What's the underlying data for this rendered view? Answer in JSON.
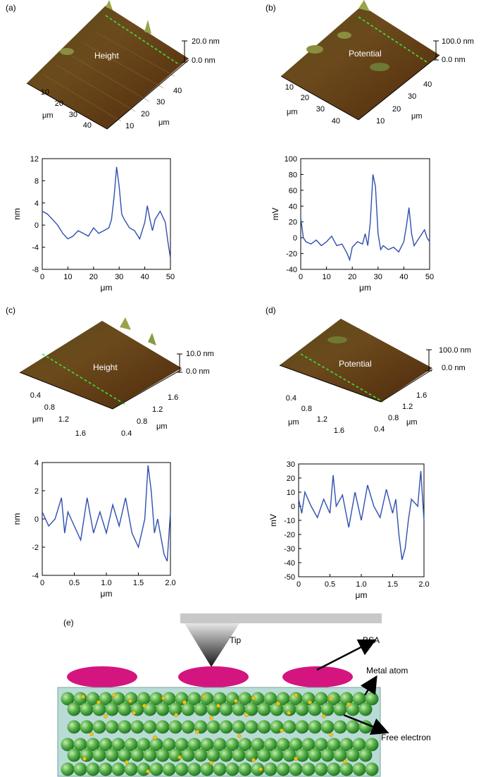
{
  "panels": {
    "a": {
      "label": "(a)",
      "surface": {
        "overlay": "Height",
        "scale_top": "20.0 nm",
        "scale_bottom": "0.0 nm",
        "left_ticks": [
          "10",
          "20",
          "30",
          "40"
        ],
        "right_ticks": [
          "10",
          "20",
          "30",
          "40"
        ],
        "unit_left": "μm",
        "unit_right": "μm"
      }
    },
    "b": {
      "label": "(b)",
      "surface": {
        "overlay": "Potential",
        "scale_top": "100.0 nm",
        "scale_bottom": "0.0 nm",
        "left_ticks": [
          "10",
          "20",
          "30",
          "40"
        ],
        "right_ticks": [
          "10",
          "20",
          "30",
          "40"
        ],
        "unit_left": "μm",
        "unit_right": "μm"
      }
    },
    "c": {
      "label": "(c)",
      "surface": {
        "overlay": "Height",
        "scale_top": "10.0 nm",
        "scale_bottom": "0.0 nm",
        "left_ticks": [
          "0.4",
          "0.8",
          "1.2",
          "1.6"
        ],
        "right_ticks": [
          "0.4",
          "0.8",
          "1.2",
          "1.6"
        ],
        "unit_left": "μm",
        "unit_right": "μm"
      }
    },
    "d": {
      "label": "(d)",
      "surface": {
        "overlay": "Potential",
        "scale_top": "100.0 nm",
        "scale_bottom": "0.0 nm",
        "left_ticks": [
          "0.4",
          "0.8",
          "1.2",
          "1.6"
        ],
        "right_ticks": [
          "0.4",
          "0.8",
          "1.2",
          "1.6"
        ],
        "unit_left": "μm",
        "unit_right": "μm"
      }
    },
    "e": {
      "label": "(e)",
      "tip": "Tip",
      "bsa": "BSA",
      "metal_atom": "Metal atom",
      "free_electron": "Free electron"
    }
  },
  "chart_data": [
    {
      "type": "line",
      "panel": "a",
      "xlabel": "μm",
      "ylabel": "nm",
      "xlim": [
        0,
        50
      ],
      "ylim": [
        -8,
        12
      ],
      "xticks": [
        0,
        10,
        20,
        30,
        40,
        50
      ],
      "yticks": [
        -8,
        -4,
        0,
        4,
        8,
        12
      ],
      "series": [
        {
          "x": [
            0,
            2,
            4,
            6,
            8,
            10,
            12,
            14,
            16,
            18,
            20,
            22,
            24,
            26,
            27,
            28,
            29,
            30,
            31,
            32,
            34,
            36,
            38,
            40,
            41,
            42,
            43,
            44,
            46,
            48,
            49,
            50
          ],
          "y": [
            2.5,
            2,
            1,
            0,
            -1.5,
            -2.5,
            -2,
            -1,
            -1.5,
            -2,
            -0.5,
            -1.5,
            -1,
            -0.5,
            1,
            5,
            10.5,
            7,
            2,
            1,
            -0.5,
            -1,
            -2.5,
            0.5,
            3.5,
            1,
            -1,
            1,
            2.5,
            0.5,
            -3,
            -6
          ]
        }
      ]
    },
    {
      "type": "line",
      "panel": "b",
      "xlabel": "μm",
      "ylabel": "mV",
      "xlim": [
        0,
        50
      ],
      "ylim": [
        -40,
        100
      ],
      "xticks": [
        0,
        10,
        20,
        30,
        40,
        50
      ],
      "yticks": [
        -40,
        -20,
        0,
        20,
        40,
        60,
        80,
        100
      ],
      "series": [
        {
          "x": [
            0,
            1,
            2,
            4,
            6,
            8,
            10,
            12,
            14,
            16,
            18,
            19,
            20,
            22,
            24,
            25,
            26,
            27,
            28,
            29,
            30,
            31,
            32,
            34,
            36,
            38,
            40,
            41,
            42,
            43,
            44,
            46,
            48,
            49,
            50
          ],
          "y": [
            25,
            0,
            -5,
            -8,
            -3,
            -10,
            -5,
            2,
            -10,
            -8,
            -20,
            -28,
            -12,
            -5,
            -8,
            5,
            -10,
            20,
            80,
            65,
            5,
            -15,
            -10,
            -15,
            -12,
            -18,
            -5,
            15,
            38,
            5,
            -10,
            0,
            10,
            0,
            -5
          ]
        }
      ]
    },
    {
      "type": "line",
      "panel": "c",
      "xlabel": "μm",
      "ylabel": "nm",
      "xlim": [
        0,
        2.0
      ],
      "ylim": [
        -4,
        4
      ],
      "xticks": [
        0,
        0.5,
        1.0,
        1.5,
        2.0
      ],
      "yticks": [
        -4,
        -2,
        0,
        2,
        4
      ],
      "series": [
        {
          "x": [
            0,
            0.1,
            0.2,
            0.3,
            0.35,
            0.4,
            0.5,
            0.6,
            0.7,
            0.8,
            0.9,
            1.0,
            1.1,
            1.2,
            1.3,
            1.4,
            1.5,
            1.55,
            1.6,
            1.65,
            1.7,
            1.75,
            1.8,
            1.9,
            1.95,
            2.0
          ],
          "y": [
            0.5,
            -0.5,
            0,
            1.5,
            -1,
            0.5,
            -0.5,
            -1.5,
            1.5,
            -1,
            0.5,
            -1,
            1,
            -0.5,
            1.5,
            -1,
            -2,
            -1,
            0,
            3.8,
            2,
            -1,
            0,
            -2.5,
            -3,
            0.5
          ]
        }
      ]
    },
    {
      "type": "line",
      "panel": "d",
      "xlabel": "μm",
      "ylabel": "mV",
      "xlim": [
        0,
        2.0
      ],
      "ylim": [
        -50,
        30
      ],
      "xticks": [
        0,
        0.5,
        1.0,
        1.5,
        2.0
      ],
      "yticks": [
        -50,
        -40,
        -30,
        -20,
        -10,
        0,
        10,
        20,
        30
      ],
      "series": [
        {
          "x": [
            0,
            0.05,
            0.1,
            0.2,
            0.3,
            0.4,
            0.5,
            0.55,
            0.6,
            0.7,
            0.8,
            0.9,
            1.0,
            1.1,
            1.2,
            1.3,
            1.4,
            1.5,
            1.55,
            1.6,
            1.65,
            1.7,
            1.75,
            1.8,
            1.9,
            1.95,
            2.0
          ],
          "y": [
            5,
            -5,
            10,
            0,
            -8,
            5,
            -5,
            22,
            0,
            8,
            -15,
            10,
            -10,
            15,
            0,
            -8,
            12,
            -5,
            5,
            -20,
            -38,
            -30,
            -10,
            5,
            0,
            25,
            -10
          ]
        }
      ]
    }
  ]
}
